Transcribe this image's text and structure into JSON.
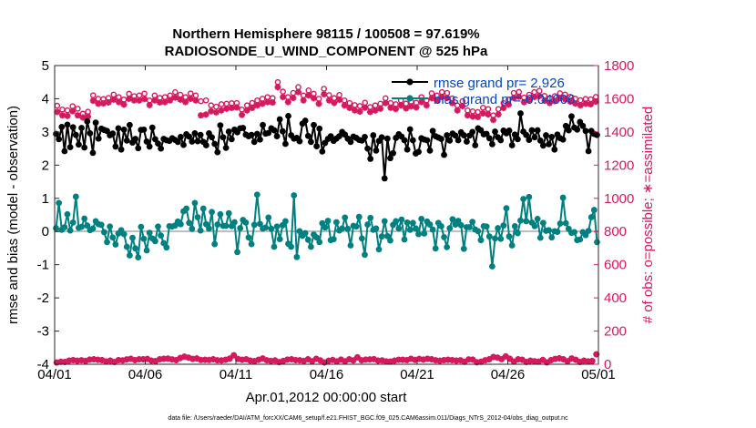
{
  "chart_data": {
    "type": "line",
    "title": "Northern Hemisphere 98115 / 100508 = 97.619%",
    "subtitle": "RADIOSONDE_U_WIND_COMPONENT @ 525 hPa",
    "xlabel": "Apr.01,2012 00:00:00 start",
    "ylabel_left": "rmse and bias (model - observation)",
    "ylabel_right": "# of obs: o=possible; ∗=assimilated",
    "footer": "data file: /Users/raeder/DAI/ATM_forcXX/CAM6_setup/f.e21.FHIST_BGC.f09_025.CAM6assim.011/Diags_NTrS_2012-04/obs_diag_output.nc",
    "x_ticks": [
      "04/01",
      "04/06",
      "04/11",
      "04/16",
      "04/21",
      "04/26",
      "05/01"
    ],
    "x_range_days": [
      0,
      30
    ],
    "y_left_ticks": [
      "-4",
      "-3",
      "-2",
      "-1",
      "0",
      "1",
      "2",
      "3",
      "4",
      "5"
    ],
    "ylim_left": [
      -4,
      5
    ],
    "y_right_ticks": [
      "0",
      "200",
      "400",
      "600",
      "800",
      "1000",
      "1200",
      "1400",
      "1600",
      "1800"
    ],
    "ylim_right": [
      0,
      1800
    ],
    "legend": [
      {
        "label": "rmse grand pr= 2.926",
        "color": "#000000"
      },
      {
        "label": "bias grand pr=-0.04006",
        "color": "#008080"
      }
    ],
    "colors": {
      "rmse": "#000000",
      "bias": "#008080",
      "obs": "#d6195e",
      "legend_text": "#0047c8",
      "zero_line": "#bfbfbf"
    },
    "series": [
      {
        "name": "rmse",
        "values": [
          2.94,
          2.78,
          3.15,
          2.42,
          3.22,
          2.54,
          3.14,
          2.91,
          2.62,
          3.12,
          2.53,
          3.32,
          2.96,
          2.37,
          3.28,
          2.8,
          3.1,
          3.06,
          3.03,
          2.9,
          2.95,
          2.56,
          3.11,
          2.47,
          3.07,
          2.74,
          3.21,
          2.68,
          2.79,
          2.51,
          3.06,
          3.07,
          2.71,
          2.56,
          3.13,
          2.78,
          2.65,
          2.5,
          2.79,
          2.75,
          2.73,
          2.81,
          2.76,
          2.7,
          2.85,
          2.61,
          2.93,
          2.86,
          2.71,
          2.96,
          2.72,
          2.91,
          2.7,
          2.6,
          2.96,
          2.84,
          2.64,
          2.39,
          3.2,
          2.84,
          2.52,
          3.01,
          2.78,
          3.07,
          2.99,
          3.11,
          3.12,
          2.92,
          2.87,
          2.91,
          2.7,
          2.94,
          2.77,
          3.21,
          2.95,
          2.97,
          3.11,
          3.05,
          2.87,
          3.38,
          3.02,
          2.64,
          3.48,
          2.9,
          2.8,
          2.82,
          2.72,
          3.25,
          3.34,
          2.88,
          2.7,
          3.21,
          2.57,
          3.1,
          2.41,
          2.67,
          2.79,
          2.87,
          2.73,
          2.8,
          2.87,
          3.0,
          2.92,
          2.8,
          2.7,
          2.86,
          2.82,
          2.76,
          2.74,
          2.85,
          2.5,
          2.19,
          2.9,
          2.44,
          2.73,
          2.84,
          1.6,
          2.8,
          2.21,
          2.36,
          2.82,
          2.93,
          2.86,
          2.75,
          2.47,
          3.08,
          2.75,
          2.35,
          2.4,
          2.81,
          2.77,
          2.75,
          2.44,
          3.03,
          2.87,
          2.83,
          2.79,
          2.31,
          2.9,
          2.74,
          2.95,
          2.89,
          2.75,
          2.99,
          2.9,
          2.71,
          2.89,
          3.0,
          2.6,
          3.11,
          3.05,
          2.93,
          2.94,
          2.81,
          2.63,
          3.01,
          2.84,
          2.75,
          3.04,
          2.96,
          3.04,
          2.6,
          2.92,
          2.78,
          3.56,
          3.01,
          2.91,
          2.76,
          3.05,
          2.84,
          3.05,
          2.74,
          2.59,
          2.9,
          2.63,
          2.85,
          2.47,
          2.92,
          2.81,
          2.77,
          3.18,
          3.05,
          3.47,
          3.13,
          3.07,
          3.3,
          3.18,
          3.03,
          2.42,
          3.03,
          2.94,
          2.91
        ]
      },
      {
        "name": "bias",
        "values": [
          0.1,
          0.86,
          0.05,
          0.13,
          0.52,
          0.03,
          0.27,
          1.05,
          0.11,
          0.14,
          0.39,
          0.18,
          0.04,
          0.09,
          0.31,
          0.22,
          0.2,
          -0.02,
          -0.32,
          0.15,
          -0.18,
          -0.39,
          -0.06,
          0.04,
          -0.08,
          -0.46,
          -0.72,
          -0.19,
          -0.51,
          -0.78,
          0.14,
          -0.22,
          -0.57,
          -0.04,
          -0.21,
          -0.29,
          0.15,
          -0.12,
          -0.35,
          -0.48,
          0.16,
          0.15,
          0.18,
          0.3,
          0.22,
          0.61,
          0.69,
          0.26,
          0.08,
          0.86,
          0.43,
          0.03,
          0.69,
          0.22,
          0.09,
          0.59,
          -0.38,
          0.21,
          0.52,
          0.17,
          0.17,
          0.55,
          0.16,
          0.28,
          -0.62,
          0.1,
          0.35,
          0.27,
          -0.18,
          -0.38,
          0.2,
          1.11,
          0.23,
          0.09,
          0.12,
          0.42,
          0.08,
          -0.46,
          0.15,
          -0.23,
          0.19,
          0.31,
          -0.37,
          -0.46,
          1.09,
          -0.77,
          0.01,
          -0.13,
          -0.05,
          -0.25,
          -0.46,
          -0.09,
          -0.18,
          -0.32,
          0.25,
          0.12,
          0.32,
          -0.26,
          -0.23,
          0.28,
          0.03,
          0.09,
          0.42,
          0.08,
          -0.42,
          0.17,
          0.15,
          0.44,
          -0.21,
          -0.7,
          0.21,
          0.41,
          0.05,
          0.09,
          -0.54,
          -0.15,
          0.31,
          -0.14,
          -0.27,
          0.2,
          0.31,
          0.09,
          0.36,
          -0.24,
          0.27,
          0.05,
          0.26,
          0.09,
          -0.08,
          0.38,
          -0.06,
          0.3,
          0.21,
          0.06,
          -0.51,
          0.26,
          0.16,
          -0.17,
          -0.47,
          0.1,
          0.37,
          0.21,
          0.32,
          0.19,
          -0.52,
          0.13,
          0.13,
          0.29,
          0.06,
          0.01,
          -0.26,
          0.16,
          0.15,
          -0.15,
          -1.05,
          -0.21,
          0.1,
          -0.22,
          0.18,
          0.7,
          -0.15,
          -0.42,
          0.16,
          -0.05,
          0.33,
          0.98,
          0.31,
          1.04,
          0.27,
          0.16,
          0.38,
          -0.19,
          0.26,
          0.02,
          0.04,
          -0.18,
          0.01,
          -0.01,
          0.24,
          1.02,
          0.25,
          0.08,
          -0.04,
          -0.02,
          -0.26,
          -0.24,
          -0.02,
          -0.11,
          0.02,
          0.43,
          0.65,
          -0.32
        ]
      },
      {
        "name": "obs_possible",
        "values": [
          1558,
          1535,
          1530,
          1555,
          1540,
          1510,
          1522,
          1621,
          1600,
          1598,
          1605,
          1625,
          1610,
          1595,
          1630,
          1615,
          1620,
          1631,
          1590,
          1620,
          1605,
          1610,
          1620,
          1640,
          1624,
          1610,
          1632,
          1620,
          1585,
          1590,
          1560,
          1552,
          1567,
          1570,
          1573,
          1574,
          1535,
          1560,
          1575,
          1590,
          1600,
          1610,
          1604,
          1700,
          1643,
          1610,
          1635,
          1670,
          1620,
          1650,
          1630,
          1600,
          1660,
          1622,
          1604,
          1623,
          1590,
          1574,
          1562,
          1556,
          1576,
          1550,
          1560,
          1570,
          1603,
          1574,
          1567,
          1590,
          1571,
          1583,
          1576,
          1610,
          1590,
          1633,
          1620,
          1640,
          1635,
          1602,
          1560,
          1585,
          1530,
          1524,
          1520,
          1546,
          1538,
          1500,
          1538,
          1574,
          1595,
          1635,
          1641,
          1607,
          1624,
          1640,
          1648,
          1617,
          1604,
          1616,
          1633,
          1625,
          1612,
          1600,
          1591,
          1599,
          1597,
          1611
        ]
      },
      {
        "name": "obs_assimilated",
        "values": [
          1520,
          1500,
          1497,
          1525,
          1500,
          1487,
          1493,
          1588,
          1570,
          1572,
          1578,
          1595,
          1580,
          1565,
          1600,
          1590,
          1590,
          1598,
          1562,
          1590,
          1578,
          1580,
          1590,
          1607,
          1595,
          1580,
          1600,
          1590,
          1500,
          1505,
          1525,
          1518,
          1530,
          1540,
          1545,
          1548,
          1503,
          1530,
          1545,
          1560,
          1570,
          1580,
          1577,
          1670,
          1610,
          1580,
          1605,
          1640,
          1590,
          1620,
          1603,
          1570,
          1627,
          1590,
          1575,
          1594,
          1560,
          1545,
          1530,
          1523,
          1546,
          1520,
          1530,
          1540,
          1574,
          1546,
          1538,
          1560,
          1542,
          1554,
          1548,
          1580,
          1560,
          1604,
          1590,
          1610,
          1605,
          1574,
          1530,
          1555,
          1500,
          1493,
          1490,
          1512,
          1506,
          1472,
          1506,
          1544,
          1565,
          1605,
          1612,
          1579,
          1594,
          1610,
          1616,
          1588,
          1574,
          1586,
          1604,
          1597,
          1583,
          1571,
          1560,
          1570,
          1567,
          1583
        ]
      },
      {
        "name": "obs_low_possible",
        "values": [
          10,
          15,
          14,
          22,
          25,
          21,
          24,
          20,
          28,
          30,
          27,
          25,
          17,
          22,
          14,
          25,
          23,
          29,
          33,
          25,
          30,
          30,
          32,
          22,
          19,
          30,
          33,
          34,
          29,
          25,
          38,
          46,
          40,
          32,
          35,
          26,
          27,
          26,
          30,
          24,
          23,
          27,
          34,
          54,
          32,
          27,
          30,
          22,
          19,
          27,
          35,
          24,
          20,
          23,
          13,
          20,
          28,
          30,
          25,
          24,
          20,
          30,
          18,
          33,
          23,
          11,
          21,
          26,
          17,
          28,
          18,
          30,
          23,
          42,
          24,
          28,
          29,
          31,
          22,
          23,
          17,
          16,
          22,
          27,
          27,
          25,
          33,
          26,
          32,
          28,
          33,
          30,
          24,
          21,
          25,
          27,
          25,
          22,
          24,
          15,
          29,
          28,
          12,
          15,
          24,
          30,
          44,
          40,
          31,
          48,
          33,
          16,
          30,
          27,
          14,
          22,
          18,
          16,
          26,
          11,
          25,
          32,
          36,
          30,
          18,
          35,
          27,
          14,
          22,
          17,
          20,
          60
        ]
      }
    ]
  }
}
